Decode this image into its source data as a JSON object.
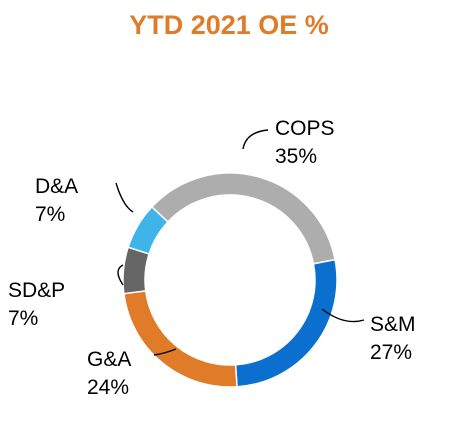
{
  "chart_data": {
    "type": "pie",
    "title": "YTD 2021 OE %",
    "slices": [
      {
        "name": "COPS",
        "value": 35,
        "value_label": "35%",
        "color": "#ADADAD"
      },
      {
        "name": "S&M",
        "value": 27,
        "value_label": "27%",
        "color": "#0A6FCE"
      },
      {
        "name": "G&A",
        "value": 24,
        "value_label": "24%",
        "color": "#E07B28"
      },
      {
        "name": "SD&P",
        "value": 7,
        "value_label": "7%",
        "color": "#666666"
      },
      {
        "name": "D&A",
        "value": 7,
        "value_label": "7%",
        "color": "#3FB4E8"
      }
    ],
    "donut": true,
    "legend": "none",
    "title_color": "#E07B28"
  }
}
